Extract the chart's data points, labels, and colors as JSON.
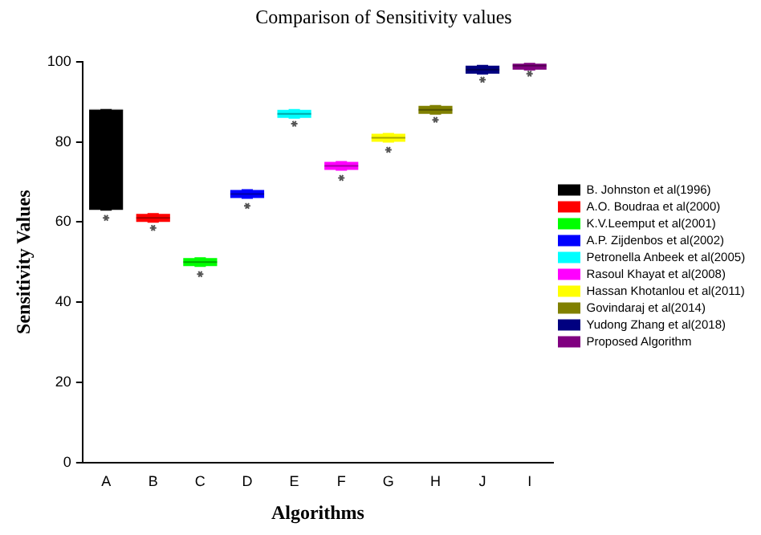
{
  "chart_data": {
    "type": "box",
    "title": "Comparison of Sensitivity values",
    "xlabel": "Algorithms",
    "ylabel": "Sensitivity Values",
    "categories": [
      "A",
      "B",
      "C",
      "D",
      "E",
      "F",
      "G",
      "H",
      "J",
      "I"
    ],
    "ylim": [
      0,
      100
    ],
    "yticks": [
      0,
      20,
      40,
      60,
      80,
      100
    ],
    "grid": false,
    "legend": "right",
    "series": [
      {
        "name": "B. Johnston et al(1996)",
        "color": "#000000",
        "boxes": [
          {
            "low": 63,
            "q1": 63,
            "median": 88,
            "q3": 88,
            "high": 88,
            "outliers": [
              61
            ]
          },
          null,
          null,
          null,
          null,
          null,
          null,
          null,
          null,
          null
        ]
      },
      {
        "name": "A.O. Boudraa et al(2000)",
        "color": "#ff0000",
        "boxes": [
          null,
          {
            "low": 60,
            "q1": 60,
            "median": 61,
            "q3": 62,
            "high": 62,
            "outliers": [
              58.5
            ]
          },
          null,
          null,
          null,
          null,
          null,
          null,
          null,
          null
        ]
      },
      {
        "name": "K.V.Leemput et al(2001)",
        "color": "#00ff00",
        "boxes": [
          null,
          null,
          {
            "low": 49,
            "q1": 49,
            "median": 50,
            "q3": 51,
            "high": 51,
            "outliers": [
              47
            ]
          },
          null,
          null,
          null,
          null,
          null,
          null,
          null
        ]
      },
      {
        "name": "A.P. Zijdenbos et al(2002)",
        "color": "#0000ff",
        "boxes": [
          null,
          null,
          null,
          {
            "low": 66,
            "q1": 66,
            "median": 67,
            "q3": 68,
            "high": 68,
            "outliers": [
              64
            ]
          },
          null,
          null,
          null,
          null,
          null,
          null
        ]
      },
      {
        "name": "Petronella Anbeek et al(2005)",
        "color": "#00ffff",
        "boxes": [
          null,
          null,
          null,
          null,
          {
            "low": 86,
            "q1": 86,
            "median": 87,
            "q3": 88,
            "high": 88,
            "outliers": [
              84.5
            ]
          },
          null,
          null,
          null,
          null,
          null
        ]
      },
      {
        "name": "Rasoul Khayat et al(2008)",
        "color": "#ff00ff",
        "boxes": [
          null,
          null,
          null,
          null,
          null,
          {
            "low": 73,
            "q1": 73,
            "median": 74,
            "q3": 75,
            "high": 75,
            "outliers": [
              71
            ]
          },
          null,
          null,
          null,
          null
        ]
      },
      {
        "name": "Hassan Khotanlou et al(2011)",
        "color": "#ffff00",
        "boxes": [
          null,
          null,
          null,
          null,
          null,
          null,
          {
            "low": 80,
            "q1": 80,
            "median": 81,
            "q3": 82,
            "high": 82,
            "outliers": [
              78
            ]
          },
          null,
          null,
          null
        ]
      },
      {
        "name": "Govindaraj et al(2014)",
        "color": "#808000",
        "boxes": [
          null,
          null,
          null,
          null,
          null,
          null,
          null,
          {
            "low": 87,
            "q1": 87,
            "median": 88,
            "q3": 89,
            "high": 89,
            "outliers": [
              85.5
            ]
          },
          null,
          null
        ]
      },
      {
        "name": "Yudong Zhang et al(2018)",
        "color": "#000080",
        "boxes": [
          null,
          null,
          null,
          null,
          null,
          null,
          null,
          null,
          {
            "low": 97,
            "q1": 97,
            "median": 98,
            "q3": 99,
            "high": 99,
            "outliers": [
              95.5
            ]
          },
          null
        ]
      },
      {
        "name": "Proposed Algorithm",
        "color": "#800080",
        "boxes": [
          null,
          null,
          null,
          null,
          null,
          null,
          null,
          null,
          null,
          {
            "low": 98,
            "q1": 98,
            "median": 99,
            "q3": 99.5,
            "high": 99.5,
            "outliers": [
              97
            ]
          }
        ]
      }
    ]
  }
}
